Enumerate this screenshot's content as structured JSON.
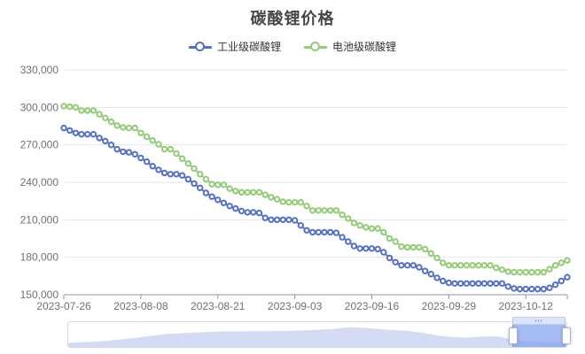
{
  "title": "碳酸锂价格",
  "legend": {
    "items": [
      {
        "label": "工业级碳酸锂",
        "color": "#5470c6"
      },
      {
        "label": "电池级碳酸锂",
        "color": "#91cc75"
      }
    ]
  },
  "colors": {
    "grid_line": "#E0E6F1",
    "axis_line": "#8b93a6",
    "axis_label": "#6E7079",
    "slider_shadow_fill": "#d3dcf2",
    "slider_border": "#d3d8e8",
    "slider_window_fill": "rgba(122,157,238,0.68)"
  },
  "chart_data": {
    "type": "line",
    "title": "碳酸锂价格",
    "grid": true,
    "legend_position": "top",
    "ylim": [
      150000,
      330000
    ],
    "y_ticks": [
      150000,
      180000,
      210000,
      240000,
      270000,
      300000,
      330000
    ],
    "x_tick_indices": [
      0,
      13,
      26,
      39,
      52,
      65,
      78
    ],
    "x_tick_labels": [
      "2023-07-26",
      "2023-08-08",
      "2023-08-21",
      "2023-09-03",
      "2023-09-16",
      "2023-09-29",
      "2023-10-12"
    ],
    "x": [
      "2023-07-26",
      "2023-07-27",
      "2023-07-28",
      "2023-07-29",
      "2023-07-30",
      "2023-07-31",
      "2023-08-01",
      "2023-08-02",
      "2023-08-03",
      "2023-08-04",
      "2023-08-05",
      "2023-08-06",
      "2023-08-07",
      "2023-08-08",
      "2023-08-09",
      "2023-08-10",
      "2023-08-11",
      "2023-08-12",
      "2023-08-13",
      "2023-08-14",
      "2023-08-15",
      "2023-08-16",
      "2023-08-17",
      "2023-08-18",
      "2023-08-19",
      "2023-08-20",
      "2023-08-21",
      "2023-08-22",
      "2023-08-23",
      "2023-08-24",
      "2023-08-25",
      "2023-08-26",
      "2023-08-27",
      "2023-08-28",
      "2023-08-29",
      "2023-08-30",
      "2023-08-31",
      "2023-09-01",
      "2023-09-02",
      "2023-09-03",
      "2023-09-04",
      "2023-09-05",
      "2023-09-06",
      "2023-09-07",
      "2023-09-08",
      "2023-09-09",
      "2023-09-10",
      "2023-09-11",
      "2023-09-12",
      "2023-09-13",
      "2023-09-14",
      "2023-09-15",
      "2023-09-16",
      "2023-09-17",
      "2023-09-18",
      "2023-09-19",
      "2023-09-20",
      "2023-09-21",
      "2023-09-22",
      "2023-09-23",
      "2023-09-24",
      "2023-09-25",
      "2023-09-26",
      "2023-09-27",
      "2023-09-28",
      "2023-09-29",
      "2023-09-30",
      "2023-10-01",
      "2023-10-02",
      "2023-10-03",
      "2023-10-04",
      "2023-10-05",
      "2023-10-06",
      "2023-10-07",
      "2023-10-08",
      "2023-10-09",
      "2023-10-10",
      "2023-10-11",
      "2023-10-12",
      "2023-10-13",
      "2023-10-14",
      "2023-10-15",
      "2023-10-16",
      "2023-10-17",
      "2023-10-18",
      "2023-10-19"
    ],
    "series": [
      {
        "name": "工业级碳酸锂",
        "color": "#5470c6",
        "values": [
          283500,
          281500,
          279500,
          278500,
          278500,
          278500,
          275500,
          273000,
          270000,
          266500,
          264500,
          264000,
          262500,
          259500,
          256500,
          253000,
          250000,
          247500,
          246500,
          246500,
          245500,
          242500,
          239000,
          235500,
          231500,
          228500,
          226000,
          223500,
          221000,
          219000,
          217000,
          216000,
          216000,
          215500,
          211500,
          210000,
          210000,
          210000,
          210000,
          209500,
          205500,
          201500,
          200000,
          200000,
          200000,
          200000,
          199500,
          196000,
          192500,
          189000,
          187000,
          187000,
          187000,
          186500,
          184000,
          179500,
          176000,
          173500,
          173500,
          173500,
          172000,
          169000,
          166500,
          163500,
          161000,
          159500,
          159000,
          159000,
          159000,
          159000,
          159000,
          159000,
          159000,
          159000,
          159000,
          156500,
          155000,
          154500,
          154500,
          154500,
          154500,
          154500,
          155500,
          158000,
          161000,
          164000
        ]
      },
      {
        "name": "电池级碳酸锂",
        "color": "#91cc75",
        "values": [
          301000,
          300500,
          300000,
          297500,
          297500,
          297500,
          294500,
          291500,
          288500,
          285500,
          284000,
          283500,
          283500,
          279500,
          276500,
          273500,
          270500,
          266500,
          266500,
          263000,
          259000,
          255000,
          251000,
          246500,
          242500,
          238500,
          238000,
          238000,
          235000,
          233000,
          232000,
          232000,
          232000,
          232000,
          230000,
          228000,
          226500,
          224500,
          224000,
          224000,
          224000,
          221000,
          217500,
          217500,
          217500,
          217500,
          217500,
          214000,
          211000,
          207500,
          205500,
          204000,
          203000,
          203000,
          200000,
          195000,
          192500,
          188500,
          188000,
          188000,
          188000,
          186500,
          183000,
          179500,
          175500,
          173500,
          173500,
          173500,
          173500,
          173500,
          173500,
          173500,
          173500,
          171500,
          170000,
          168500,
          168000,
          168000,
          168000,
          168000,
          168000,
          168000,
          170500,
          173500,
          175500,
          177500
        ]
      }
    ],
    "slider": {
      "window_start_pct": 89.2,
      "window_end_pct": 99.8,
      "profile": [
        [
          0,
          0.18
        ],
        [
          0.02,
          0.2
        ],
        [
          0.05,
          0.22
        ],
        [
          0.08,
          0.27
        ],
        [
          0.12,
          0.36
        ],
        [
          0.16,
          0.46
        ],
        [
          0.2,
          0.56
        ],
        [
          0.25,
          0.62
        ],
        [
          0.3,
          0.67
        ],
        [
          0.36,
          0.68
        ],
        [
          0.42,
          0.69
        ],
        [
          0.48,
          0.72
        ],
        [
          0.53,
          0.78
        ],
        [
          0.57,
          0.86
        ],
        [
          0.6,
          0.82
        ],
        [
          0.64,
          0.75
        ],
        [
          0.68,
          0.7
        ],
        [
          0.71,
          0.62
        ],
        [
          0.74,
          0.5
        ],
        [
          0.77,
          0.43
        ],
        [
          0.8,
          0.4
        ],
        [
          0.83,
          0.45
        ],
        [
          0.86,
          0.46
        ],
        [
          0.88,
          0.38
        ],
        [
          0.9,
          0.28
        ],
        [
          0.93,
          0.23
        ],
        [
          0.96,
          0.21
        ],
        [
          1.0,
          0.2
        ]
      ]
    }
  }
}
